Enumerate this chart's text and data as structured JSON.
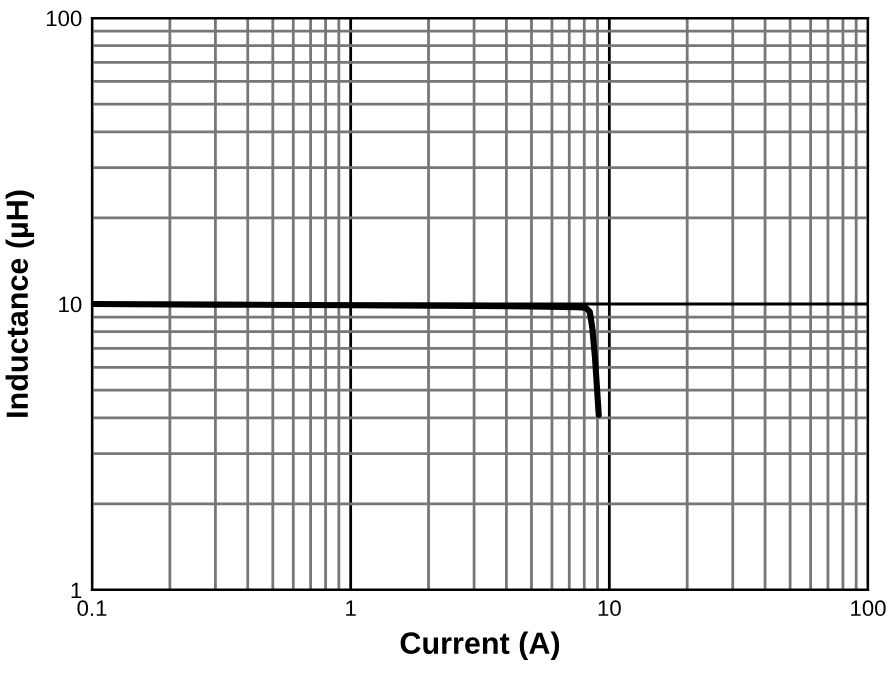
{
  "chart_data": {
    "type": "line",
    "xlabel": "Current (A)",
    "ylabel": "Inductance (µH)",
    "log": "xy",
    "x": [
      0.1,
      0.3,
      1,
      3,
      5,
      7.5,
      8.1,
      8.4,
      8.6,
      8.8,
      9.1
    ],
    "series": [
      {
        "color": "#000000",
        "values": [
          10,
          9.95,
          9.9,
          9.85,
          9.8,
          9.75,
          9.7,
          9.4,
          8.2,
          6.5,
          4.1
        ]
      }
    ],
    "xlim": [
      0.1,
      100
    ],
    "ylim": [
      1,
      100
    ],
    "xticks": [
      0.1,
      1,
      10,
      100
    ],
    "yticks": [
      1,
      10,
      100
    ],
    "grid": true,
    "marker": "none",
    "line_style": "solid"
  }
}
